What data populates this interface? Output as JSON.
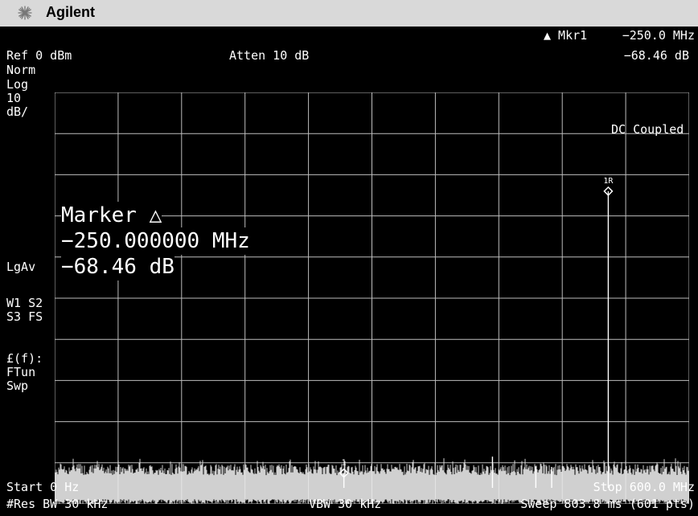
{
  "window": {
    "brand": "Agilent",
    "logo_icon": "agilent-spark-icon"
  },
  "header": {
    "marker_label": "▲ Mkr1",
    "marker_freq": "−250.0 MHz",
    "marker_amp": "−68.46 dB",
    "ref_level": "Ref 0 dBm",
    "atten": "Atten 10 dB"
  },
  "left_panel": {
    "mode": "Norm",
    "scale_type": "Log",
    "scale_value": "10",
    "scale_unit": "dB/",
    "avg": "LgAv",
    "trace_line1": "W1  S2",
    "trace_line2": "S3  FS",
    "func_line1": "£(f):",
    "func_line2": "FTun",
    "func_line3": "Swp"
  },
  "right_panel": {
    "coupling": "DC Coupled"
  },
  "marker_readout": {
    "title": "Marker △",
    "freq": "−250.000000 MHz",
    "amp": "−68.46 dB"
  },
  "footer": {
    "start": "Start 0 Hz",
    "stop": "Stop 600.0 MHz",
    "rbw": "#Res BW 30 kHz",
    "vbw": "VBW 30 kHz",
    "sweep": "Sweep 803.8 ms (601 pts)"
  },
  "chart_data": {
    "type": "line",
    "x_unit": "MHz",
    "y_unit": "dBm",
    "xlim": [
      0,
      600
    ],
    "ylim": [
      -100,
      0
    ],
    "grid": true,
    "grid_divisions": [
      10,
      10
    ],
    "noise_floor_dbm": -93,
    "signals": [
      {
        "x": 273.5,
        "y": -92.5
      },
      {
        "x": 414.0,
        "y": -88.5
      },
      {
        "x": 455.0,
        "y": -91.0
      },
      {
        "x": 470.0,
        "y": -91.0
      },
      {
        "x": 523.5,
        "y": -24.0
      }
    ],
    "markers": [
      {
        "label": "1",
        "x": 273.5,
        "y": -92.5
      },
      {
        "label": "1R",
        "x": 523.5,
        "y": -24.0
      }
    ]
  }
}
